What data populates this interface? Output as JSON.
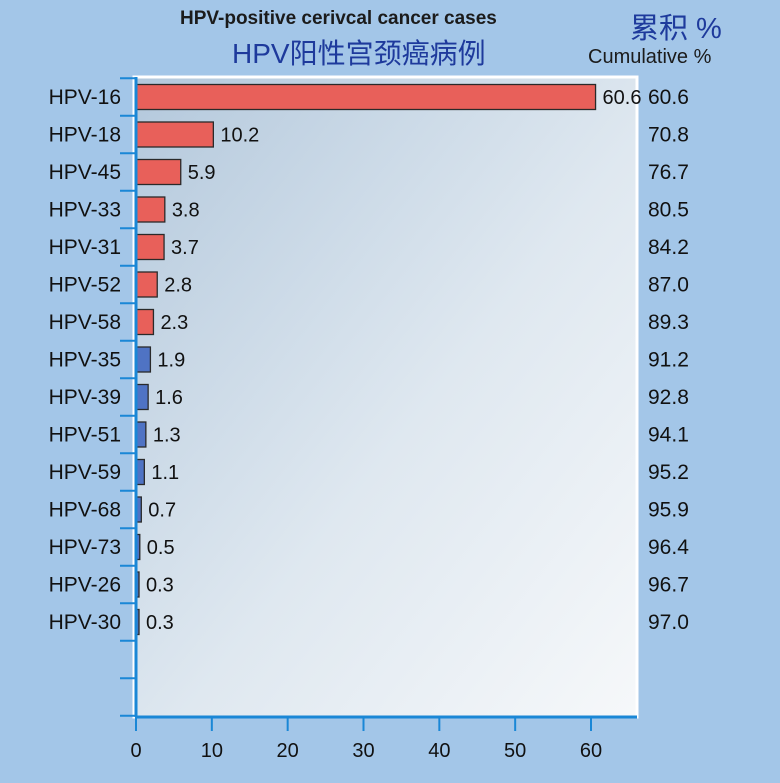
{
  "header": {
    "title_en": "HPV-positive cerivcal cancer cases",
    "title_zh": "HPV阳性宫颈癌病例",
    "cumulative_zh": "累积 %",
    "cumulative_en": "Cumulative %"
  },
  "chart_data": {
    "type": "bar",
    "orientation": "horizontal",
    "title": "HPV-positive cerivcal cancer cases",
    "subtitle": "HPV阳性宫颈癌病例",
    "xlim": [
      0,
      60
    ],
    "xticks": [
      0,
      10,
      20,
      30,
      40,
      50,
      60
    ],
    "grid": false,
    "categories": [
      "HPV-16",
      "HPV-18",
      "HPV-45",
      "HPV-33",
      "HPV-31",
      "HPV-52",
      "HPV-58",
      "HPV-35",
      "HPV-39",
      "HPV-51",
      "HPV-59",
      "HPV-68",
      "HPV-73",
      "HPV-26",
      "HPV-30"
    ],
    "values": [
      60.6,
      10.2,
      5.9,
      3.8,
      3.7,
      2.8,
      2.3,
      1.9,
      1.6,
      1.3,
      1.1,
      0.7,
      0.5,
      0.3,
      0.3
    ],
    "value_labels": [
      "60.6",
      "10.2",
      "5.9",
      "3.8",
      "3.7",
      "2.8",
      "2.3",
      "1.9",
      "1.6",
      "1.3",
      "1.1",
      "0.7",
      "0.5",
      "0.3",
      "0.3"
    ],
    "cumulative_labels": [
      "60.6",
      "70.8",
      "76.7",
      "80.5",
      "84.2",
      "87.0",
      "89.3",
      "91.2",
      "92.8",
      "94.1",
      "95.2",
      "95.9",
      "96.4",
      "96.7",
      "97.0"
    ],
    "bar_colors": [
      "#e8605a",
      "#e8605a",
      "#e8605a",
      "#e8605a",
      "#e8605a",
      "#e8605a",
      "#e8605a",
      "#4f73c4",
      "#4f73c4",
      "#4f73c4",
      "#4f73c4",
      "#4f73c4",
      "#4f73c4",
      "#4f73c4",
      "#4f73c4"
    ],
    "colors": {
      "high_risk": "#e8605a",
      "other": "#4f73c4",
      "axis": "#1a87d6",
      "background": "#a3c6e8"
    }
  }
}
